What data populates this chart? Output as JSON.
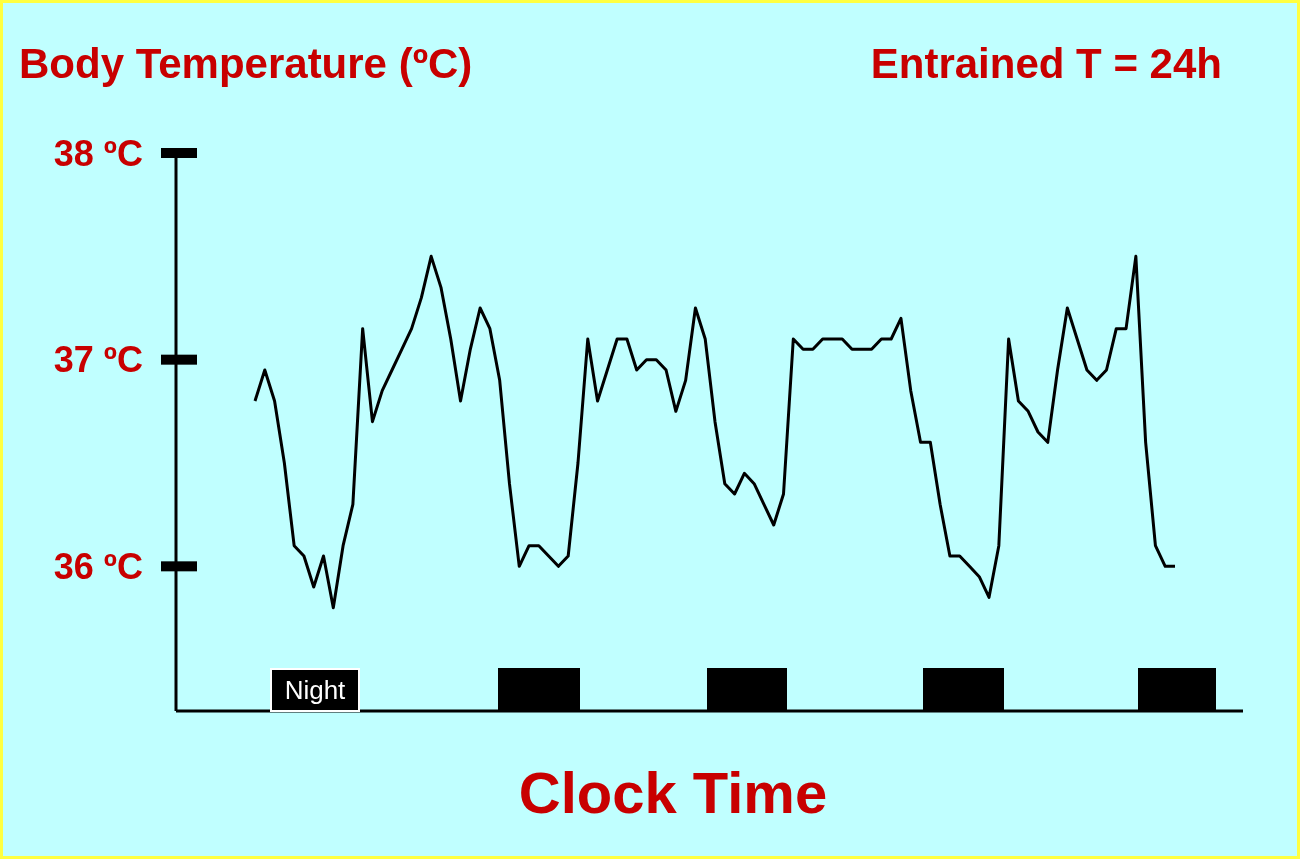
{
  "chart_data": {
    "type": "line",
    "title": "Body Temperature (ºC)",
    "subtitle": "Entrained T = 24h",
    "xlabel": "Clock Time",
    "annotations": [
      "Night"
    ],
    "categories": [
      null,
      null,
      null,
      null,
      null,
      null,
      null,
      null,
      null,
      null,
      null,
      null,
      null,
      null,
      null,
      null,
      null,
      null,
      null,
      null,
      null,
      null,
      null,
      null,
      null,
      null,
      null,
      null,
      null,
      null,
      null,
      null,
      null,
      null,
      null,
      null,
      null,
      null,
      null,
      null,
      null,
      null,
      null,
      null,
      null,
      null,
      null,
      null,
      null,
      null,
      null,
      null,
      null,
      null,
      null,
      null,
      null,
      null,
      null,
      null,
      null,
      null,
      null,
      null,
      null,
      null,
      null,
      null,
      null,
      null,
      null,
      null,
      null,
      null,
      null,
      null,
      null,
      null,
      null,
      null,
      null,
      null,
      null,
      null,
      null,
      null,
      null,
      null,
      null,
      null,
      null,
      null,
      null,
      null,
      null
    ],
    "series": [
      {
        "color": "#000000",
        "values": [
          36.8,
          36.95,
          36.8,
          36.5,
          36.1,
          36.05,
          35.9,
          36.05,
          35.8,
          36.1,
          36.3,
          37.15,
          36.7,
          36.85,
          36.95,
          37.05,
          37.15,
          37.3,
          37.5,
          37.35,
          37.1,
          36.8,
          37.05,
          37.25,
          37.15,
          36.9,
          36.4,
          36.0,
          36.1,
          36.1,
          36.05,
          36.0,
          36.05,
          36.5,
          37.1,
          36.8,
          36.95,
          37.1,
          37.1,
          36.95,
          37.0,
          37.0,
          36.95,
          36.75,
          36.9,
          37.25,
          37.1,
          36.7,
          36.4,
          36.35,
          36.45,
          36.4,
          36.3,
          36.2,
          36.35,
          37.1,
          37.05,
          37.05,
          37.1,
          37.1,
          37.1,
          37.05,
          37.05,
          37.05,
          37.1,
          37.1,
          37.2,
          36.85,
          36.6,
          36.6,
          36.3,
          36.05,
          36.05,
          36.0,
          35.95,
          35.85,
          36.1,
          37.1,
          36.8,
          36.75,
          36.65,
          36.6,
          36.95,
          37.25,
          37.1,
          36.95,
          36.9,
          36.95,
          37.15,
          37.15,
          37.5,
          36.6,
          36.1,
          36.0,
          36.0
        ]
      }
    ],
    "ylim": [
      35.3,
      38
    ],
    "yticks": [
      {
        "value": 36,
        "label": "36 ºC"
      },
      {
        "value": 37,
        "label": "37 ºC"
      },
      {
        "value": 38,
        "label": "38 ºC"
      }
    ],
    "tick_labels": "y",
    "marker": "none",
    "line_style": "solid"
  }
}
